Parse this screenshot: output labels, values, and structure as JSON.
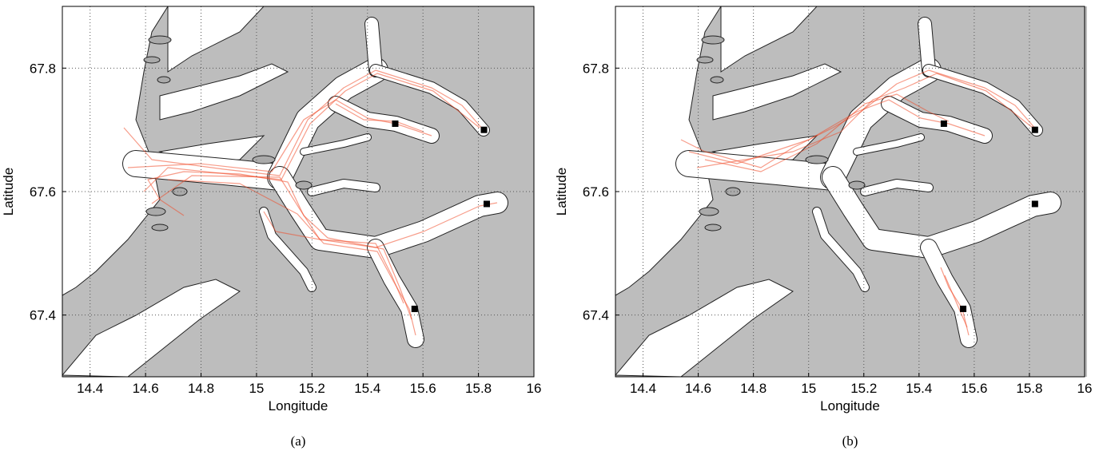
{
  "chart_data": [
    {
      "type": "map",
      "caption": "(a)",
      "xlabel": "Longitude",
      "ylabel": "Latitude",
      "xlim": [
        14.3,
        16
      ],
      "ylim": [
        67.3,
        67.9
      ],
      "xticks": [
        14.4,
        14.6,
        14.8,
        15,
        15.2,
        15.4,
        15.6,
        15.8,
        16
      ],
      "yticks": [
        67.4,
        67.6,
        67.8
      ],
      "grid": true,
      "x": [
        15.5,
        15.82,
        15.83,
        15.57
      ],
      "values": [
        67.71,
        67.7,
        67.58,
        67.41
      ],
      "color": "#000000"
    },
    {
      "type": "map",
      "caption": "(b)",
      "xlabel": "Longitude",
      "ylabel": "Latitude",
      "xlim": [
        14.3,
        16
      ],
      "ylim": [
        67.3,
        67.9
      ],
      "xticks": [
        14.4,
        14.6,
        14.8,
        15,
        15.2,
        15.4,
        15.6,
        15.8,
        16
      ],
      "yticks": [
        67.4,
        67.6,
        67.8
      ],
      "grid": true,
      "x": [
        15.49,
        15.82,
        15.82,
        15.56
      ],
      "values": [
        67.71,
        67.7,
        67.58,
        67.41
      ],
      "color": "#000000"
    }
  ]
}
